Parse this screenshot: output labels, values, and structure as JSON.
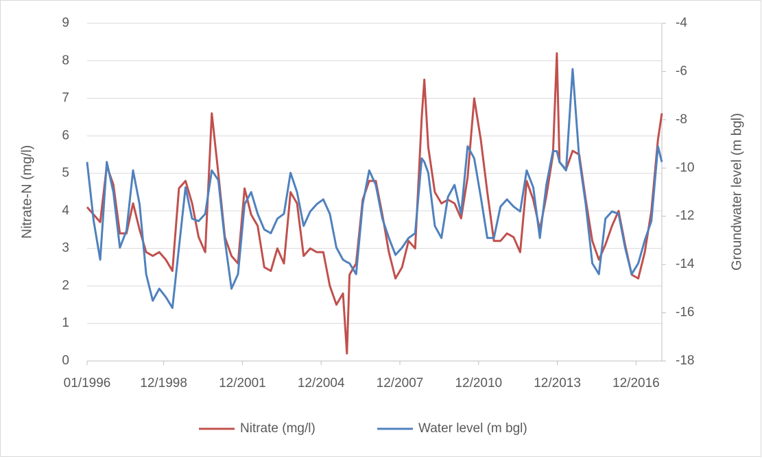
{
  "chart_data": {
    "type": "line",
    "y_label": "Nitrate-N (mg/l)",
    "y2_label": "Groundwater level (m bgl)",
    "x": [
      1996.0,
      1996.25,
      1996.5,
      1996.75,
      1997.0,
      1997.25,
      1997.5,
      1997.75,
      1998.0,
      1998.25,
      1998.5,
      1998.75,
      1999.0,
      1999.25,
      1999.5,
      1999.75,
      2000.0,
      2000.25,
      2000.5,
      2000.75,
      2001.0,
      2001.25,
      2001.5,
      2001.75,
      2002.0,
      2002.25,
      2002.5,
      2002.75,
      2003.0,
      2003.25,
      2003.5,
      2003.75,
      2004.0,
      2004.25,
      2004.5,
      2004.75,
      2005.0,
      2005.25,
      2005.5,
      2005.75,
      2005.9,
      2006.0,
      2006.25,
      2006.5,
      2006.75,
      2007.0,
      2007.25,
      2007.5,
      2007.75,
      2008.0,
      2008.25,
      2008.5,
      2008.75,
      2008.85,
      2009.0,
      2009.25,
      2009.5,
      2009.75,
      2010.0,
      2010.25,
      2010.5,
      2010.75,
      2011.0,
      2011.25,
      2011.5,
      2011.75,
      2012.0,
      2012.25,
      2012.5,
      2012.75,
      2013.0,
      2013.25,
      2013.5,
      2013.75,
      2013.9,
      2014.0,
      2014.25,
      2014.5,
      2014.75,
      2015.0,
      2015.25,
      2015.5,
      2015.75,
      2016.0,
      2016.25,
      2016.5,
      2016.75,
      2017.0,
      2017.25,
      2017.5,
      2017.75,
      2017.9
    ],
    "series": [
      {
        "name": "Nitrate (mg/l)",
        "color": "#c0504d",
        "axis": "y",
        "values": [
          4.1,
          3.9,
          3.7,
          5.2,
          4.7,
          3.4,
          3.4,
          4.2,
          3.5,
          2.9,
          2.8,
          2.9,
          2.7,
          2.4,
          4.6,
          4.8,
          4.2,
          3.3,
          2.9,
          6.6,
          5.0,
          3.3,
          2.8,
          2.6,
          4.6,
          3.9,
          3.6,
          2.5,
          2.4,
          3.0,
          2.6,
          4.5,
          4.2,
          2.8,
          3.0,
          2.9,
          2.9,
          2.0,
          1.5,
          1.8,
          0.2,
          2.3,
          2.6,
          4.3,
          4.8,
          4.8,
          3.9,
          2.9,
          2.2,
          2.5,
          3.2,
          3.0,
          6.5,
          7.5,
          5.7,
          4.5,
          4.2,
          4.3,
          4.2,
          3.8,
          4.9,
          7.0,
          5.9,
          4.5,
          3.2,
          3.2,
          3.4,
          3.3,
          2.9,
          4.8,
          4.3,
          3.5,
          4.4,
          5.5,
          8.2,
          5.3,
          5.1,
          5.6,
          5.5,
          4.3,
          3.2,
          2.7,
          3.1,
          3.6,
          4.0,
          3.1,
          2.3,
          2.2,
          2.9,
          4.0,
          5.9,
          6.6
        ]
      },
      {
        "name": "Water level (m bgl)",
        "color": "#4f81bd",
        "axis": "y2",
        "values": [
          -9.75,
          -12.2,
          -13.8,
          -9.75,
          -11.0,
          -13.3,
          -12.6,
          -10.1,
          -11.5,
          -14.4,
          -15.5,
          -15.0,
          -15.35,
          -15.8,
          -13.3,
          -10.8,
          -12.1,
          -12.2,
          -11.9,
          -10.1,
          -10.5,
          -13.0,
          -15.0,
          -14.4,
          -11.5,
          -11.0,
          -11.9,
          -12.55,
          -12.7,
          -12.1,
          -11.9,
          -10.2,
          -11.0,
          -12.4,
          -11.8,
          -11.5,
          -11.3,
          -11.9,
          -13.3,
          -13.8,
          -13.9,
          -13.95,
          -14.4,
          -11.5,
          -10.1,
          -10.7,
          -12.1,
          -12.9,
          -13.6,
          -13.3,
          -12.9,
          -12.7,
          -9.6,
          -9.75,
          -10.2,
          -12.4,
          -12.9,
          -11.2,
          -10.7,
          -11.9,
          -9.1,
          -9.6,
          -11.2,
          -12.9,
          -12.9,
          -11.6,
          -11.3,
          -11.6,
          -11.8,
          -10.1,
          -10.8,
          -12.9,
          -10.7,
          -9.3,
          -9.3,
          -9.75,
          -10.1,
          -5.9,
          -9.6,
          -11.5,
          -13.95,
          -14.4,
          -12.1,
          -11.8,
          -11.9,
          -13.3,
          -14.4,
          -13.95,
          -13.0,
          -12.2,
          -9.1,
          -9.75
        ]
      }
    ],
    "xlim": [
      1996.0,
      2017.9
    ],
    "xticks": [
      {
        "value": 1996.0,
        "label": "01/1996"
      },
      {
        "value": 1998.917,
        "label": "12/1998"
      },
      {
        "value": 2001.917,
        "label": "12/2001"
      },
      {
        "value": 2004.917,
        "label": "12/2004"
      },
      {
        "value": 2007.917,
        "label": "12/2007"
      },
      {
        "value": 2010.917,
        "label": "12/2010"
      },
      {
        "value": 2013.917,
        "label": "12/2013"
      },
      {
        "value": 2016.917,
        "label": "12/2016"
      }
    ],
    "ylim": [
      0,
      9
    ],
    "yticks": [
      0,
      1,
      2,
      3,
      4,
      5,
      6,
      7,
      8,
      9
    ],
    "y2lim": [
      -18,
      -4
    ],
    "y2ticks": [
      -18,
      -16,
      -14,
      -12,
      -10,
      -8,
      -6,
      -4
    ],
    "grid": true,
    "legend": "bottom"
  }
}
